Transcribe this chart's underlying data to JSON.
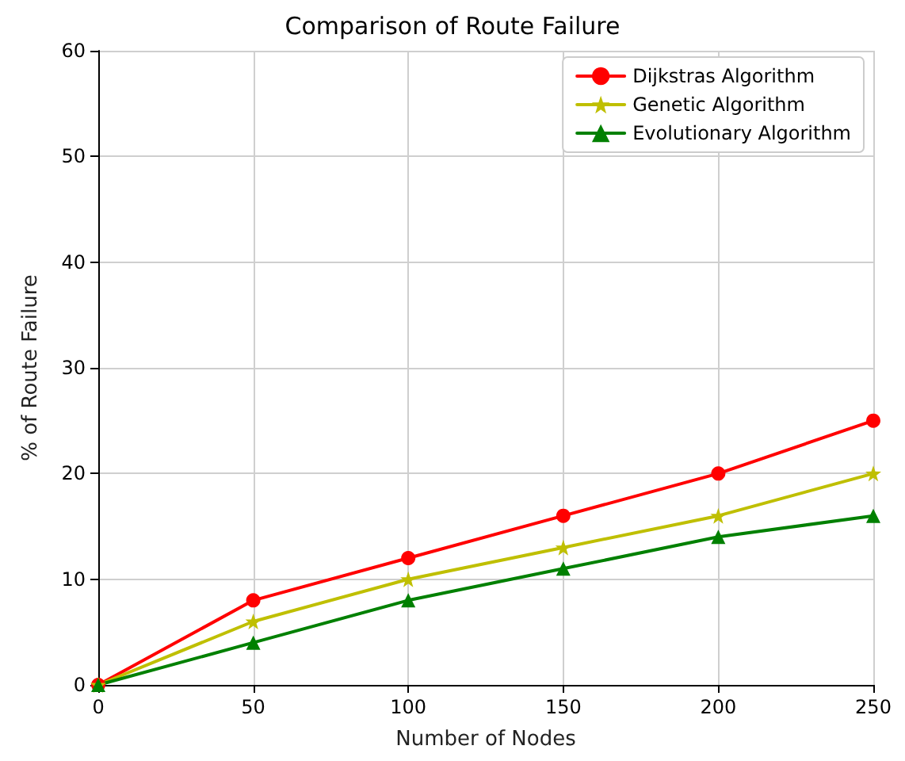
{
  "chart_data": {
    "type": "line",
    "title": "Comparison of Route Failure",
    "xlabel": "Number of Nodes",
    "ylabel": "% of Route Failure",
    "x": [
      0,
      50,
      100,
      150,
      200,
      250
    ],
    "series": [
      {
        "name": "Dijkstras Algorithm",
        "color": "#ff0000",
        "marker": "circle",
        "values": [
          0,
          8,
          12,
          16,
          20,
          25
        ]
      },
      {
        "name": "Genetic Algorithm",
        "color": "#bfbf00",
        "marker": "star",
        "values": [
          0,
          6,
          10,
          13,
          16,
          20
        ]
      },
      {
        "name": "Evolutionary Algorithm",
        "color": "#008000",
        "marker": "triangle",
        "values": [
          0,
          4,
          8,
          11,
          14,
          16
        ]
      }
    ],
    "xlim": [
      0,
      250
    ],
    "xticks": [
      0,
      50,
      100,
      150,
      200,
      250
    ],
    "ylim": [
      0,
      60
    ],
    "yticks": [
      0,
      10,
      20,
      30,
      40,
      50,
      60
    ],
    "grid": true,
    "legend": "top right",
    "line_style": "solid"
  }
}
